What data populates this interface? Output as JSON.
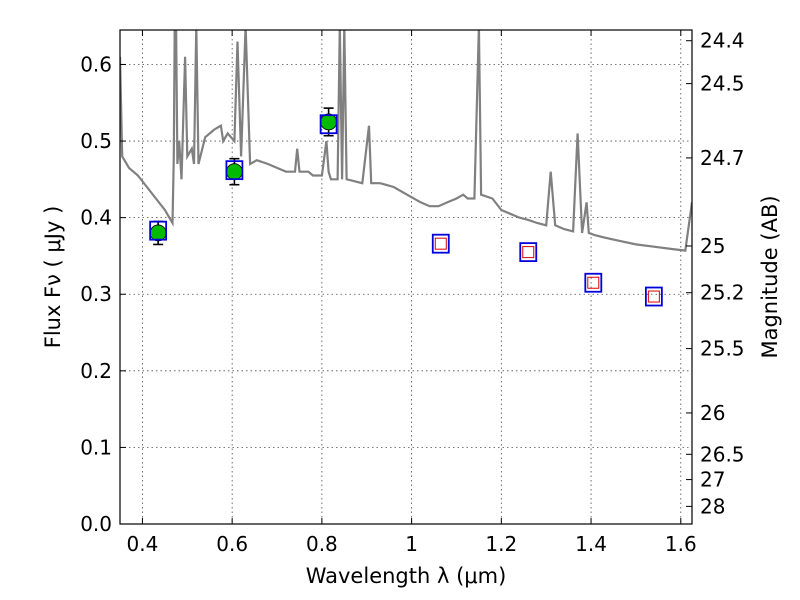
{
  "chart_data": {
    "type": "scatter",
    "title": "",
    "xlabel": "Wavelength  λ (μm)",
    "ylabel": "Flux  Fν  ( μJy )",
    "ylabel_right": "Magnitude (AB)",
    "xlim": [
      0.35,
      1.625
    ],
    "ylim": [
      0.0,
      0.645
    ],
    "grid": true,
    "x_ticks": [
      0.4,
      0.6,
      0.8,
      1.0,
      1.2,
      1.4,
      1.6
    ],
    "x_tick_labels": [
      "0.4",
      "0.6",
      "0.8",
      "1",
      "1.2",
      "1.4",
      "1.6"
    ],
    "y_ticks": [
      0.0,
      0.1,
      0.2,
      0.3,
      0.4,
      0.5,
      0.6
    ],
    "y_tick_labels": [
      "0.0",
      "0.1",
      "0.2",
      "0.3",
      "0.4",
      "0.5",
      "0.6"
    ],
    "right_ticks": [
      {
        "flux": 0.631,
        "label": "24.4"
      },
      {
        "flux": 0.575,
        "label": "24.5"
      },
      {
        "flux": 0.478,
        "label": "24.7"
      },
      {
        "flux": 0.363,
        "label": "25"
      },
      {
        "flux": 0.302,
        "label": "25.2"
      },
      {
        "flux": 0.229,
        "label": "25.5"
      },
      {
        "flux": 0.145,
        "label": "26"
      },
      {
        "flux": 0.091,
        "label": "26.5"
      },
      {
        "flux": 0.058,
        "label": "27"
      },
      {
        "flux": 0.023,
        "label": "28"
      }
    ],
    "colors": {
      "model": "#808080",
      "observed": "#00bb00",
      "model_photometry": "#0000dd",
      "predicted": "#dd0000"
    },
    "series": [
      {
        "kind": "model_spectrum",
        "points": [
          [
            0.35,
            0.61
          ],
          [
            0.355,
            0.48
          ],
          [
            0.37,
            0.465
          ],
          [
            0.39,
            0.455
          ],
          [
            0.41,
            0.44
          ],
          [
            0.43,
            0.425
          ],
          [
            0.45,
            0.41
          ],
          [
            0.46,
            0.4
          ],
          [
            0.467,
            0.393
          ],
          [
            0.47,
            0.48
          ],
          [
            0.472,
            0.65
          ],
          [
            0.475,
            0.65
          ],
          [
            0.478,
            0.47
          ],
          [
            0.482,
            0.5
          ],
          [
            0.487,
            0.45
          ],
          [
            0.495,
            0.61
          ],
          [
            0.5,
            0.48
          ],
          [
            0.51,
            0.49
          ],
          [
            0.515,
            0.47
          ],
          [
            0.52,
            0.65
          ],
          [
            0.525,
            0.47
          ],
          [
            0.54,
            0.505
          ],
          [
            0.56,
            0.515
          ],
          [
            0.575,
            0.52
          ],
          [
            0.58,
            0.5
          ],
          [
            0.59,
            0.51
          ],
          [
            0.605,
            0.5
          ],
          [
            0.612,
            0.63
          ],
          [
            0.62,
            0.48
          ],
          [
            0.63,
            0.65
          ],
          [
            0.64,
            0.47
          ],
          [
            0.655,
            0.475
          ],
          [
            0.68,
            0.47
          ],
          [
            0.7,
            0.465
          ],
          [
            0.72,
            0.46
          ],
          [
            0.74,
            0.46
          ],
          [
            0.745,
            0.49
          ],
          [
            0.75,
            0.46
          ],
          [
            0.77,
            0.46
          ],
          [
            0.78,
            0.455
          ],
          [
            0.8,
            0.455
          ],
          [
            0.81,
            0.5
          ],
          [
            0.815,
            0.46
          ],
          [
            0.82,
            0.45
          ],
          [
            0.835,
            0.45
          ],
          [
            0.84,
            0.65
          ],
          [
            0.845,
            0.45
          ],
          [
            0.85,
            0.65
          ],
          [
            0.855,
            0.45
          ],
          [
            0.87,
            0.448
          ],
          [
            0.89,
            0.445
          ],
          [
            0.905,
            0.52
          ],
          [
            0.91,
            0.445
          ],
          [
            0.93,
            0.445
          ],
          [
            0.96,
            0.44
          ],
          [
            0.99,
            0.43
          ],
          [
            1.02,
            0.42
          ],
          [
            1.04,
            0.415
          ],
          [
            1.06,
            0.415
          ],
          [
            1.08,
            0.42
          ],
          [
            1.1,
            0.425
          ],
          [
            1.115,
            0.43
          ],
          [
            1.125,
            0.425
          ],
          [
            1.14,
            0.425
          ],
          [
            1.15,
            0.65
          ],
          [
            1.155,
            0.43
          ],
          [
            1.18,
            0.425
          ],
          [
            1.2,
            0.41
          ],
          [
            1.22,
            0.405
          ],
          [
            1.24,
            0.4
          ],
          [
            1.26,
            0.397
          ],
          [
            1.28,
            0.393
          ],
          [
            1.3,
            0.39
          ],
          [
            1.31,
            0.46
          ],
          [
            1.32,
            0.39
          ],
          [
            1.34,
            0.385
          ],
          [
            1.36,
            0.382
          ],
          [
            1.37,
            0.51
          ],
          [
            1.38,
            0.38
          ],
          [
            1.39,
            0.42
          ],
          [
            1.395,
            0.38
          ],
          [
            1.41,
            0.377
          ],
          [
            1.43,
            0.374
          ],
          [
            1.46,
            0.37
          ],
          [
            1.5,
            0.365
          ],
          [
            1.54,
            0.362
          ],
          [
            1.58,
            0.359
          ],
          [
            1.61,
            0.357
          ],
          [
            1.625,
            0.42
          ]
        ]
      },
      {
        "kind": "observed",
        "x": [
          0.435,
          0.605,
          0.815
        ],
        "y": [
          0.38,
          0.46,
          0.525
        ],
        "yerr": [
          0.015,
          0.017,
          0.018
        ]
      },
      {
        "kind": "model_photometry",
        "x": [
          0.435,
          0.605,
          0.815,
          1.065,
          1.26,
          1.405,
          1.54
        ],
        "y": [
          0.383,
          0.462,
          0.522,
          0.366,
          0.355,
          0.315,
          0.297
        ]
      },
      {
        "kind": "predicted",
        "x": [
          1.065,
          1.26,
          1.405,
          1.54
        ],
        "y": [
          0.366,
          0.355,
          0.315,
          0.297
        ]
      }
    ]
  }
}
